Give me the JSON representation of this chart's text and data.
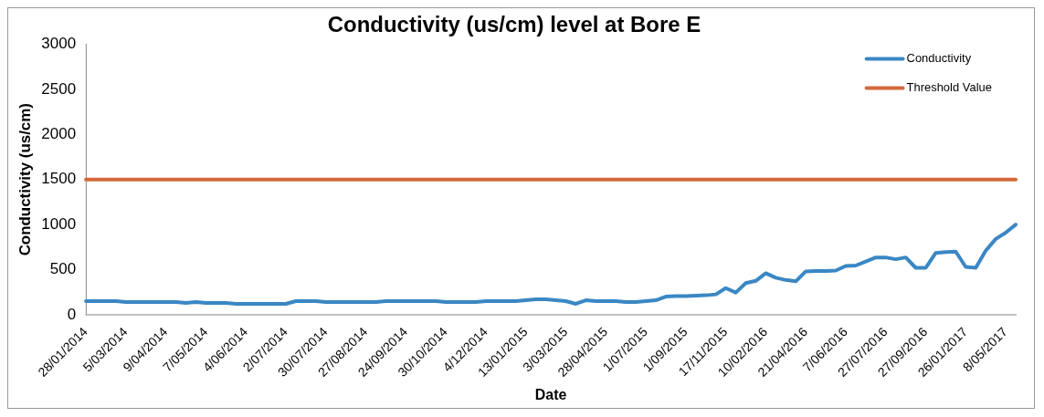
{
  "chart_data": {
    "type": "line",
    "title": "Conductivity (us/cm) level at Bore E",
    "xlabel": "Date",
    "ylabel": "Conductivity (us/cm)",
    "categories": [
      "28/01/2014",
      null,
      null,
      null,
      "5/03/2014",
      null,
      null,
      null,
      "9/04/2014",
      null,
      null,
      null,
      "7/05/2014",
      null,
      null,
      null,
      "4/06/2014",
      null,
      null,
      null,
      "2/07/2014",
      null,
      null,
      null,
      "30/07/2014",
      null,
      null,
      null,
      "27/08/2014",
      null,
      null,
      null,
      "24/09/2014",
      null,
      null,
      null,
      "30/10/2014",
      null,
      null,
      null,
      "4/12/2014",
      null,
      null,
      null,
      "13/01/2015",
      null,
      null,
      null,
      "3/03/2015",
      null,
      null,
      null,
      "28/04/2015",
      null,
      null,
      null,
      "1/07/2015",
      null,
      null,
      null,
      "1/09/2015",
      null,
      null,
      null,
      "17/11/2015",
      null,
      null,
      null,
      "10/02/2016",
      null,
      null,
      null,
      "21/04/2016",
      null,
      null,
      null,
      "7/06/2016",
      null,
      null,
      null,
      "27/07/2016",
      null,
      null,
      null,
      "27/09/2016",
      null,
      null,
      null,
      "26/01/2017",
      null,
      null,
      null,
      "8/05/2017",
      null
    ],
    "series": [
      {
        "name": "Conductivity",
        "color": "#3a87c4",
        "values": [
          150,
          150,
          150,
          150,
          140,
          140,
          140,
          140,
          140,
          140,
          130,
          140,
          130,
          130,
          130,
          120,
          120,
          120,
          120,
          120,
          120,
          150,
          150,
          150,
          140,
          140,
          140,
          140,
          140,
          140,
          150,
          150,
          150,
          150,
          150,
          150,
          140,
          140,
          140,
          140,
          150,
          150,
          150,
          150,
          160,
          170,
          170,
          160,
          150,
          120,
          160,
          150,
          150,
          150,
          140,
          140,
          150,
          160,
          200,
          205,
          205,
          210,
          215,
          225,
          295,
          245,
          350,
          375,
          460,
          410,
          385,
          370,
          480,
          485,
          485,
          490,
          540,
          545,
          590,
          635,
          635,
          615,
          635,
          520,
          520,
          685,
          695,
          700,
          530,
          520,
          710,
          840,
          910,
          1000
        ]
      },
      {
        "name": "Threshold Value",
        "color": "#d2693a",
        "values": [
          1500,
          1500,
          1500,
          1500,
          1500,
          1500,
          1500,
          1500,
          1500,
          1500,
          1500,
          1500,
          1500,
          1500,
          1500,
          1500,
          1500,
          1500,
          1500,
          1500,
          1500,
          1500,
          1500,
          1500,
          1500,
          1500,
          1500,
          1500,
          1500,
          1500,
          1500,
          1500,
          1500,
          1500,
          1500,
          1500,
          1500,
          1500,
          1500,
          1500,
          1500,
          1500,
          1500,
          1500,
          1500,
          1500,
          1500,
          1500,
          1500,
          1500,
          1500,
          1500,
          1500,
          1500,
          1500,
          1500,
          1500,
          1500,
          1500,
          1500,
          1500,
          1500,
          1500,
          1500,
          1500,
          1500,
          1500,
          1500,
          1500,
          1500,
          1500,
          1500,
          1500,
          1500,
          1500,
          1500,
          1500,
          1500,
          1500,
          1500,
          1500,
          1500,
          1500,
          1500,
          1500,
          1500,
          1500,
          1500,
          1500,
          1500,
          1500,
          1500,
          1500,
          1500
        ]
      }
    ],
    "ylim": [
      0,
      3000
    ],
    "yticks": [
      0,
      500,
      1000,
      1500,
      2000,
      2500,
      3000
    ],
    "grid": false,
    "legend": "top right",
    "marker": "none",
    "line_style": "solid"
  }
}
